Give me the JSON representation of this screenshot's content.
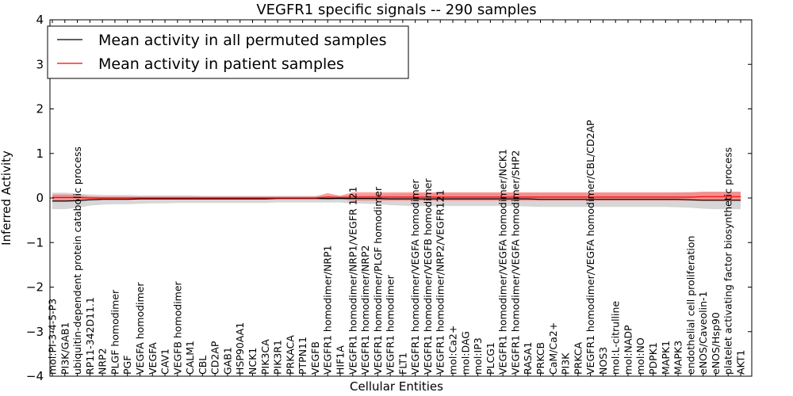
{
  "chart_data": {
    "type": "line",
    "title": "VEGFR1 specific signals -- 290 samples",
    "xlabel": "Cellular Entities",
    "ylabel": "Inferred Activity",
    "ylim": [
      -4,
      4
    ],
    "yticks": [
      "−4",
      "−3",
      "−2",
      "−1",
      "0",
      "1",
      "2",
      "3",
      "4"
    ],
    "grid": false,
    "legend_position": "top-left",
    "categories": [
      "mol:PI-3-4-5-P3",
      "PI3K/GAB1",
      "ubiquitin-dependent protein catabolic process",
      "RP11-342D11.1",
      "NRP2",
      "PLGF homodimer",
      "PGF",
      "VEGFA homodimer",
      "VEGFA",
      "CAV1",
      "VEGFB homodimer",
      "CALM1",
      "CBL",
      "CD2AP",
      "GAB1",
      "HSP90AA1",
      "NCK1",
      "PIK3CA",
      "PIK3R1",
      "PRKACA",
      "PTPN11",
      "VEGFB",
      "VEGFR1 homodimer/NRP1",
      "HIF1A",
      "VEGFR1 homodimer/NRP1/VEGFR 121",
      "VEGFR1 homodimer/NRP2",
      "VEGFR1 homodimer/PLGF homodimer",
      "VEGFR1 homodimer",
      "FLT1",
      "VEGFR1 homodimer/VEGFA homodimer",
      "VEGFR1 homodimer/VEGFB homodimer",
      "VEGFR1 homodimer/NRP2/VEGFR121",
      "mol:Ca2+",
      "mol:DAG",
      "mol:IP3",
      "PLCG1",
      "VEGFR1 homodimer/VEGFA homodimer/NCK1",
      "VEGFR1 homodimer/VEGFA homodimer/SHP2",
      "RASA1",
      "PRKCB",
      "CaM/Ca2+",
      "PI3K",
      "PRKCA",
      "VEGFR1 homodimer/VEGFA homodimer/CBL/CD2AP",
      "NOS3",
      "mol:L-citrulline",
      "mol:NADP",
      "mol:NO",
      "PDPK1",
      "MAPK1",
      "MAPK3",
      "endothelial cell proliferation",
      "eNOS/Caveolin-1",
      "eNOS/Hsp90",
      "platelet activating factor biosynthetic process",
      "AKT1"
    ],
    "series": [
      {
        "name": "Mean activity in all permuted samples",
        "color": "#000000",
        "band_color": "#c8c8c8",
        "values": [
          -0.07,
          -0.07,
          -0.06,
          -0.04,
          -0.03,
          -0.03,
          -0.03,
          -0.02,
          -0.02,
          -0.02,
          -0.02,
          -0.02,
          -0.02,
          -0.02,
          -0.02,
          -0.02,
          -0.02,
          -0.02,
          -0.01,
          -0.01,
          -0.01,
          -0.01,
          -0.01,
          -0.01,
          -0.01,
          -0.01,
          -0.01,
          -0.02,
          -0.02,
          -0.02,
          -0.02,
          -0.02,
          -0.02,
          -0.02,
          -0.02,
          -0.02,
          -0.02,
          -0.02,
          -0.02,
          -0.03,
          -0.03,
          -0.03,
          -0.03,
          -0.03,
          -0.03,
          -0.03,
          -0.03,
          -0.03,
          -0.03,
          -0.03,
          -0.03,
          -0.04,
          -0.05,
          -0.05,
          -0.05,
          -0.05
        ],
        "lower": [
          -0.25,
          -0.25,
          -0.22,
          -0.17,
          -0.15,
          -0.14,
          -0.14,
          -0.13,
          -0.12,
          -0.12,
          -0.11,
          -0.11,
          -0.11,
          -0.11,
          -0.11,
          -0.11,
          -0.11,
          -0.11,
          -0.1,
          -0.1,
          -0.1,
          -0.1,
          -0.1,
          -0.1,
          -0.12,
          -0.13,
          -0.14,
          -0.16,
          -0.17,
          -0.18,
          -0.18,
          -0.18,
          -0.18,
          -0.18,
          -0.18,
          -0.18,
          -0.18,
          -0.18,
          -0.19,
          -0.2,
          -0.2,
          -0.2,
          -0.2,
          -0.2,
          -0.2,
          -0.2,
          -0.2,
          -0.2,
          -0.2,
          -0.2,
          -0.21,
          -0.22,
          -0.24,
          -0.25,
          -0.25,
          -0.25
        ],
        "upper": [
          0.12,
          0.12,
          0.1,
          0.08,
          0.07,
          0.07,
          0.07,
          0.06,
          0.06,
          0.06,
          0.06,
          0.06,
          0.05,
          0.05,
          0.05,
          0.05,
          0.05,
          0.05,
          0.05,
          0.05,
          0.05,
          0.05,
          0.05,
          0.05,
          0.06,
          0.07,
          0.08,
          0.09,
          0.1,
          0.11,
          0.11,
          0.11,
          0.11,
          0.11,
          0.11,
          0.11,
          0.11,
          0.11,
          0.11,
          0.11,
          0.11,
          0.11,
          0.11,
          0.11,
          0.11,
          0.11,
          0.11,
          0.11,
          0.11,
          0.11,
          0.12,
          0.13,
          0.14,
          0.14,
          0.14,
          0.14
        ]
      },
      {
        "name": "Mean activity in patient samples",
        "color": "#ff0000",
        "band_color": "#ff6060",
        "values": [
          0.01,
          0.01,
          0.01,
          0.0,
          0.0,
          0.0,
          0.0,
          0.0,
          0.0,
          0.0,
          0.0,
          0.0,
          0.0,
          0.0,
          0.0,
          0.0,
          0.0,
          0.0,
          0.0,
          0.0,
          0.0,
          0.0,
          0.02,
          0.01,
          0.02,
          0.02,
          0.02,
          0.02,
          0.02,
          0.02,
          0.02,
          0.02,
          0.02,
          0.02,
          0.02,
          0.02,
          0.02,
          0.02,
          0.02,
          0.02,
          0.02,
          0.02,
          0.02,
          0.02,
          0.02,
          0.02,
          0.02,
          0.02,
          0.02,
          0.02,
          0.02,
          0.02,
          0.03,
          0.03,
          0.03,
          0.03
        ],
        "lower": [
          -0.08,
          -0.08,
          -0.06,
          -0.04,
          -0.03,
          -0.03,
          -0.03,
          -0.02,
          -0.02,
          -0.02,
          -0.02,
          -0.02,
          -0.02,
          -0.02,
          -0.02,
          -0.02,
          -0.02,
          -0.02,
          -0.02,
          -0.02,
          -0.02,
          -0.02,
          -0.04,
          -0.02,
          -0.06,
          -0.06,
          -0.06,
          -0.06,
          -0.06,
          -0.06,
          -0.06,
          -0.06,
          -0.06,
          -0.06,
          -0.06,
          -0.06,
          -0.06,
          -0.06,
          -0.06,
          -0.06,
          -0.06,
          -0.06,
          -0.06,
          -0.06,
          -0.06,
          -0.06,
          -0.06,
          -0.06,
          -0.06,
          -0.06,
          -0.06,
          -0.06,
          -0.07,
          -0.07,
          -0.07,
          -0.07
        ],
        "upper": [
          0.08,
          0.08,
          0.07,
          0.04,
          0.03,
          0.03,
          0.03,
          0.03,
          0.03,
          0.03,
          0.03,
          0.03,
          0.03,
          0.03,
          0.03,
          0.03,
          0.03,
          0.03,
          0.03,
          0.03,
          0.03,
          0.03,
          0.11,
          0.05,
          0.13,
          0.13,
          0.13,
          0.13,
          0.13,
          0.13,
          0.13,
          0.13,
          0.13,
          0.13,
          0.13,
          0.13,
          0.13,
          0.13,
          0.13,
          0.13,
          0.13,
          0.13,
          0.13,
          0.13,
          0.13,
          0.13,
          0.13,
          0.13,
          0.13,
          0.13,
          0.13,
          0.13,
          0.14,
          0.14,
          0.14,
          0.14
        ]
      }
    ]
  }
}
